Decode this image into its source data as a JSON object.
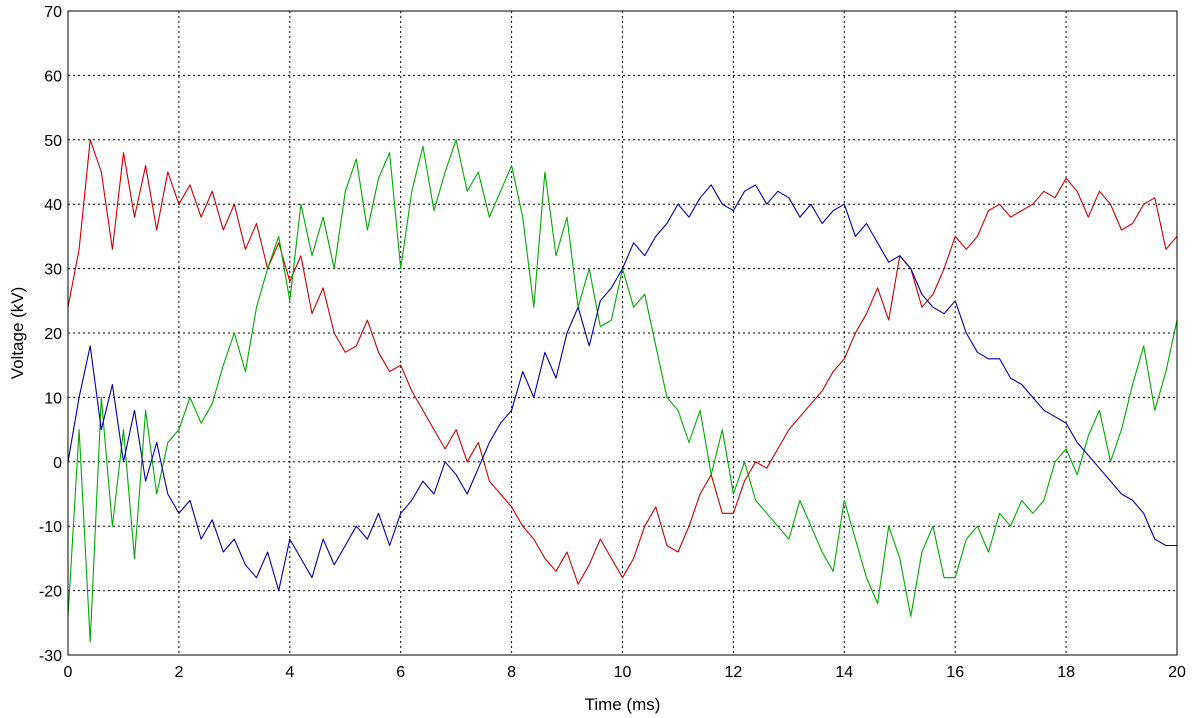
{
  "chart_data": {
    "type": "line",
    "title": "",
    "xlabel": "Time (ms)",
    "ylabel": "Voltage (kV)",
    "xlim": [
      0,
      20
    ],
    "ylim": [
      -30,
      70
    ],
    "x_ticks": [
      "0",
      "2",
      "4",
      "6",
      "8",
      "10",
      "12",
      "14",
      "16",
      "18",
      "20"
    ],
    "y_ticks": [
      "-30",
      "-20",
      "-10",
      "0",
      "10",
      "20",
      "30",
      "40",
      "50",
      "60",
      "70"
    ],
    "grid": true,
    "legend": "none",
    "series": [
      {
        "color": "#cc0000",
        "x": [
          0,
          0.2,
          0.4,
          0.6,
          0.8,
          1.0,
          1.2,
          1.4,
          1.6,
          1.8,
          2.0,
          2.2,
          2.4,
          2.6,
          2.8,
          3.0,
          3.2,
          3.4,
          3.6,
          3.8,
          4.0,
          4.2,
          4.4,
          4.6,
          4.8,
          5.0,
          5.2,
          5.4,
          5.6,
          5.8,
          6.0,
          6.2,
          6.4,
          6.6,
          6.8,
          7.0,
          7.2,
          7.4,
          7.6,
          7.8,
          8.0,
          8.2,
          8.4,
          8.6,
          8.8,
          9.0,
          9.2,
          9.4,
          9.6,
          9.8,
          10.0,
          10.2,
          10.4,
          10.6,
          10.8,
          11.0,
          11.2,
          11.4,
          11.6,
          11.8,
          12.0,
          12.2,
          12.4,
          12.6,
          12.8,
          13.0,
          13.2,
          13.4,
          13.6,
          13.8,
          14.0,
          14.2,
          14.4,
          14.6,
          14.8,
          15.0,
          15.2,
          15.4,
          15.6,
          15.8,
          16.0,
          16.2,
          16.4,
          16.6,
          16.8,
          17.0,
          17.2,
          17.4,
          17.6,
          17.8,
          18.0,
          18.2,
          18.4,
          18.6,
          18.8,
          19.0,
          19.2,
          19.4,
          19.6,
          19.8,
          20.0
        ],
        "values": [
          24,
          33,
          50,
          45,
          33,
          48,
          38,
          46,
          36,
          45,
          40,
          43,
          38,
          42,
          36,
          40,
          33,
          37,
          30,
          34,
          28,
          32,
          23,
          27,
          20,
          17,
          18,
          22,
          17,
          14,
          15,
          11,
          8,
          5,
          2,
          5,
          0,
          3,
          -3,
          -5,
          -7,
          -10,
          -12,
          -15,
          -17,
          -14,
          -19,
          -16,
          -12,
          -15,
          -18,
          -15,
          -10,
          -7,
          -13,
          -14,
          -10,
          -5,
          -2,
          -8,
          -8,
          -3,
          0,
          -1,
          2,
          5,
          7,
          9,
          11,
          14,
          16,
          20,
          23,
          27,
          22,
          32,
          30,
          24,
          26,
          30,
          35,
          33,
          35,
          39,
          40,
          38,
          39,
          40,
          42,
          41,
          44,
          42,
          38,
          42,
          40,
          36,
          37,
          40,
          41,
          33,
          35
        ]
      },
      {
        "color": "#00aa00",
        "x": [
          0,
          0.2,
          0.4,
          0.6,
          0.8,
          1.0,
          1.2,
          1.4,
          1.6,
          1.8,
          2.0,
          2.2,
          2.4,
          2.6,
          2.8,
          3.0,
          3.2,
          3.4,
          3.6,
          3.8,
          4.0,
          4.2,
          4.4,
          4.6,
          4.8,
          5.0,
          5.2,
          5.4,
          5.6,
          5.8,
          6.0,
          6.2,
          6.4,
          6.6,
          6.8,
          7.0,
          7.2,
          7.4,
          7.6,
          7.8,
          8.0,
          8.2,
          8.4,
          8.6,
          8.8,
          9.0,
          9.2,
          9.4,
          9.6,
          9.8,
          10.0,
          10.2,
          10.4,
          10.6,
          10.8,
          11.0,
          11.2,
          11.4,
          11.6,
          11.8,
          12.0,
          12.2,
          12.4,
          12.6,
          12.8,
          13.0,
          13.2,
          13.4,
          13.6,
          13.8,
          14.0,
          14.2,
          14.4,
          14.6,
          14.8,
          15.0,
          15.2,
          15.4,
          15.6,
          15.8,
          16.0,
          16.2,
          16.4,
          16.6,
          16.8,
          17.0,
          17.2,
          17.4,
          17.6,
          17.8,
          18.0,
          18.2,
          18.4,
          18.6,
          18.8,
          19.0,
          19.2,
          19.4,
          19.6,
          19.8,
          20.0
        ],
        "values": [
          -24,
          5,
          -28,
          10,
          -10,
          5,
          -15,
          8,
          -5,
          3,
          5,
          10,
          6,
          9,
          15,
          20,
          14,
          24,
          30,
          35,
          25,
          40,
          32,
          38,
          30,
          42,
          47,
          36,
          44,
          48,
          30,
          42,
          49,
          39,
          45,
          50,
          42,
          45,
          38,
          42,
          46,
          38,
          24,
          45,
          32,
          38,
          24,
          30,
          21,
          22,
          30,
          24,
          26,
          18,
          10,
          8,
          3,
          8,
          -2,
          5,
          -5,
          0,
          -6,
          -8,
          -10,
          -12,
          -6,
          -10,
          -14,
          -17,
          -6,
          -12,
          -18,
          -22,
          -10,
          -15,
          -24,
          -14,
          -10,
          -18,
          -18,
          -12,
          -10,
          -14,
          -8,
          -10,
          -6,
          -8,
          -6,
          0,
          2,
          -2,
          4,
          8,
          0,
          5,
          12,
          18,
          8,
          14,
          22
        ]
      },
      {
        "color": "#0000aa",
        "x": [
          0,
          0.2,
          0.4,
          0.6,
          0.8,
          1.0,
          1.2,
          1.4,
          1.6,
          1.8,
          2.0,
          2.2,
          2.4,
          2.6,
          2.8,
          3.0,
          3.2,
          3.4,
          3.6,
          3.8,
          4.0,
          4.2,
          4.4,
          4.6,
          4.8,
          5.0,
          5.2,
          5.4,
          5.6,
          5.8,
          6.0,
          6.2,
          6.4,
          6.6,
          6.8,
          7.0,
          7.2,
          7.4,
          7.6,
          7.8,
          8.0,
          8.2,
          8.4,
          8.6,
          8.8,
          9.0,
          9.2,
          9.4,
          9.6,
          9.8,
          10.0,
          10.2,
          10.4,
          10.6,
          10.8,
          11.0,
          11.2,
          11.4,
          11.6,
          11.8,
          12.0,
          12.2,
          12.4,
          12.6,
          12.8,
          13.0,
          13.2,
          13.4,
          13.6,
          13.8,
          14.0,
          14.2,
          14.4,
          14.6,
          14.8,
          15.0,
          15.2,
          15.4,
          15.6,
          15.8,
          16.0,
          16.2,
          16.4,
          16.6,
          16.8,
          17.0,
          17.2,
          17.4,
          17.6,
          17.8,
          18.0,
          18.2,
          18.4,
          18.6,
          18.8,
          19.0,
          19.2,
          19.4,
          19.6,
          19.8,
          20.0
        ],
        "values": [
          0,
          10,
          18,
          5,
          12,
          0,
          8,
          -3,
          3,
          -5,
          -8,
          -6,
          -12,
          -9,
          -14,
          -12,
          -16,
          -18,
          -14,
          -20,
          -12,
          -15,
          -18,
          -12,
          -16,
          -13,
          -10,
          -12,
          -8,
          -13,
          -8,
          -6,
          -3,
          -5,
          0,
          -2,
          -5,
          -1,
          3,
          6,
          8,
          14,
          10,
          17,
          13,
          20,
          24,
          18,
          25,
          27,
          30,
          34,
          32,
          35,
          37,
          40,
          38,
          41,
          43,
          40,
          39,
          42,
          43,
          40,
          42,
          41,
          38,
          40,
          37,
          39,
          40,
          35,
          37,
          34,
          31,
          32,
          30,
          26,
          24,
          23,
          25,
          20,
          17,
          16,
          16,
          13,
          12,
          10,
          8,
          7,
          6,
          3,
          1,
          -1,
          -3,
          -5,
          -6,
          -8,
          -12,
          -13,
          -13
        ]
      }
    ]
  }
}
